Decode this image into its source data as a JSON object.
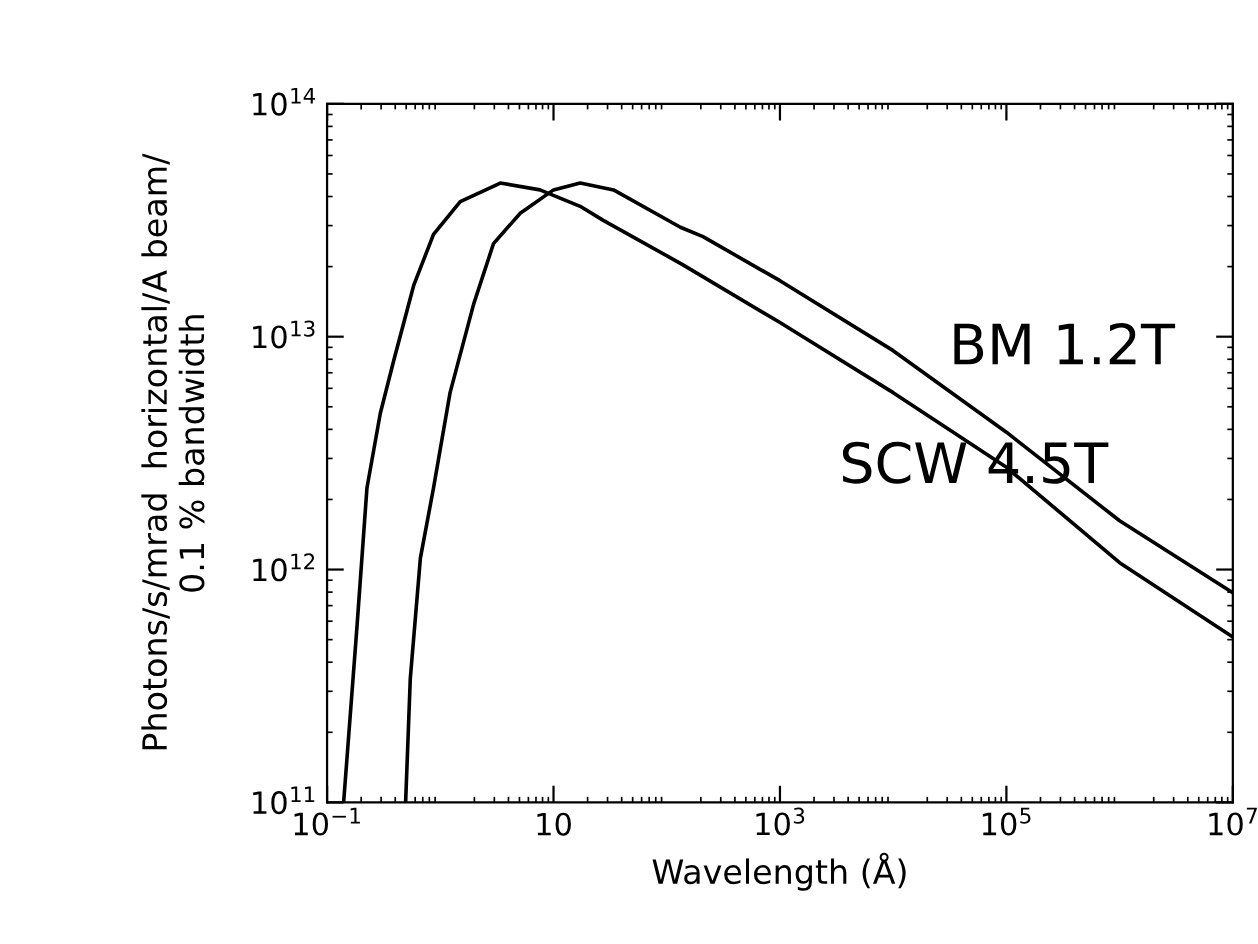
{
  "chart_data": {
    "type": "line",
    "xlabel": "Wavelength (Å)",
    "ylabel": "Photons/s/mrad  horizontal/A beam/\n0.1 % bandwidth",
    "log": "xy",
    "xlim": [
      0.1,
      10000000
    ],
    "ylim": [
      100000000000,
      100000000000000
    ],
    "xticks": [
      {
        "value": 0.1,
        "label": "10$^{−1}$"
      },
      10,
      {
        "value": 1000,
        "label": "10$^{3}$"
      },
      {
        "value": 100000,
        "label": "10$^{5}$"
      },
      {
        "value": 10000000,
        "label": "10$^{7}$"
      }
    ],
    "yticks": [
      {
        "value": 100000000000,
        "label": "10$^{11}$"
      },
      {
        "value": 1000000000000,
        "label": "10$^{12}$"
      },
      {
        "value": 10000000000000,
        "label": "10$^{13}$"
      },
      {
        "value": 100000000000000,
        "label": "10$^{14}$"
      }
    ],
    "grid": false,
    "marker": "none",
    "line_style": "solid",
    "series": [
      {
        "color": "#000000",
        "x": [
          0.14,
          0.184,
          0.225,
          0.295,
          0.389,
          0.582,
          0.871,
          1.5,
          3.39,
          7.59,
          17.2,
          27.5,
          138,
          1000,
          10000,
          100000,
          1000000,
          10000000
        ],
        "values": [
          100000000000.0,
          575000000000.0,
          2240000000000.0,
          4680000000000.0,
          7940000000000.0,
          16600000000000.0,
          27500000000000.0,
          38000000000000.0,
          45700000000000.0,
          42700000000000.0,
          36300000000000.0,
          31600000000000.0,
          20400000000000.0,
          11500000000000.0,
          5750000000000.0,
          2750000000000.0,
          1070000000000.0,
          513000000000.0
        ]
      },
      {
        "color": "#000000",
        "x": [
          0.494,
          0.543,
          0.667,
          0.871,
          1.22,
          1.97,
          2.95,
          5.08,
          10,
          17.2,
          33.9,
          132,
          209,
          1000,
          10000,
          100000,
          1000000,
          10000000
        ],
        "values": [
          100000000000.0,
          339000000000.0,
          1120000000000.0,
          2240000000000.0,
          5750000000000.0,
          13800000000000.0,
          25100000000000.0,
          33900000000000.0,
          42700000000000.0,
          45700000000000.0,
          42700000000000.0,
          29500000000000.0,
          26900000000000.0,
          17400000000000.0,
          8710000000000.0,
          3890000000000.0,
          1620000000000.0,
          794000000000.0
        ]
      }
    ],
    "annotations": [
      {
        "text": "BM 1.2T",
        "x": 100000,
        "y": 3890000000000.0
      },
      {
        "text": "SCW 4.5T",
        "x": 10000,
        "y": 5750000000000.0
      }
    ]
  }
}
